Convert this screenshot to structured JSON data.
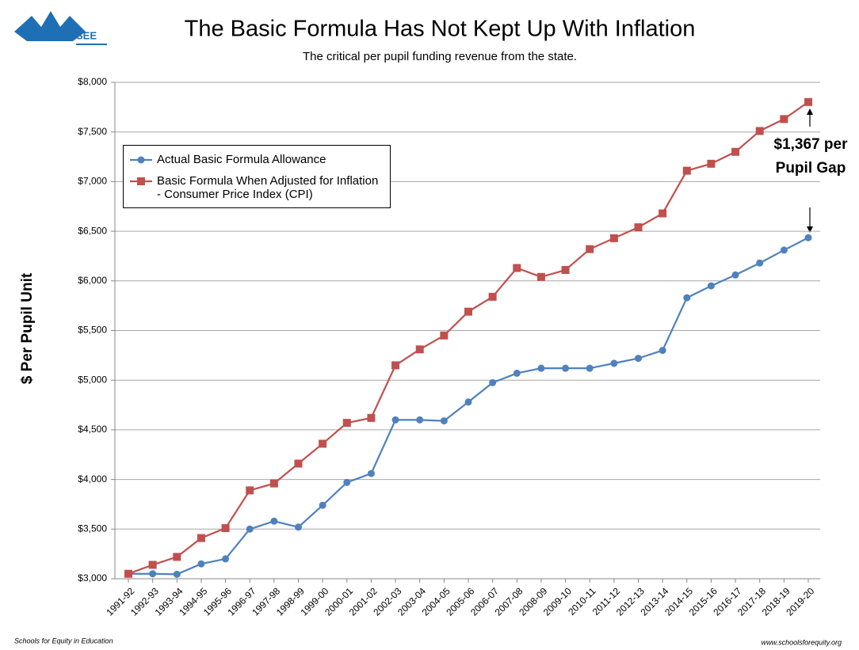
{
  "chart_data": {
    "type": "line",
    "logo_text": "SEE",
    "title": "The Basic Formula Has Not Kept Up With Inflation",
    "subtitle": "The critical per pupil funding revenue from the state.",
    "y_label": "$ Per Pupil Unit",
    "annotation": "$1,367 per Pupil Gap",
    "footer_left": "Schools for Equity in Education",
    "footer_right": "www.schoolsforequity.org",
    "categories": [
      "1991-92",
      "1992-93",
      "1993-94",
      "1994-95",
      "1995-96",
      "1996-97",
      "1997-98",
      "1998-99",
      "1999-00",
      "2000-01",
      "2001-02",
      "2002-03",
      "2003-04",
      "2004-05",
      "2005-06",
      "2006-07",
      "2007-08",
      "2008-09",
      "2009-10",
      "2010-11",
      "2011-12",
      "2012-13",
      "2013-14",
      "2014-15",
      "2015-16",
      "2016-17",
      "2017-18",
      "2018-19",
      "2019-20"
    ],
    "series": [
      {
        "name": "Actual Basic Formula Allowance",
        "color": "#4f81bd",
        "marker": "circle",
        "values": [
          3050,
          3050,
          3045,
          3150,
          3200,
          3500,
          3580,
          3520,
          3740,
          3970,
          4060,
          4600,
          4600,
          4590,
          4780,
          4975,
          5070,
          5120,
          5120,
          5120,
          5170,
          5220,
          5300,
          5830,
          5950,
          6060,
          6180,
          6310,
          6435
        ]
      },
      {
        "name": "Basic Formula When Adjusted for Inflation - Consumer Price Index (CPI)",
        "color": "#c0504d",
        "marker": "square",
        "values": [
          3050,
          3140,
          3220,
          3410,
          3510,
          3890,
          3960,
          4160,
          4360,
          4570,
          4620,
          5150,
          5310,
          5450,
          5690,
          5840,
          6130,
          6040,
          6110,
          6320,
          6430,
          6540,
          6680,
          7110,
          7180,
          7300,
          7510,
          7630,
          7802
        ]
      }
    ],
    "ylim": [
      3000,
      8000
    ],
    "yticks": [
      {
        "value": 3000,
        "label": "$3,000"
      },
      {
        "value": 3500,
        "label": "$3,500"
      },
      {
        "value": 4000,
        "label": "$4,000"
      },
      {
        "value": 4500,
        "label": "$4,500"
      },
      {
        "value": 5000,
        "label": "$5,000"
      },
      {
        "value": 5500,
        "label": "$5,500"
      },
      {
        "value": 6000,
        "label": "$6,000"
      },
      {
        "value": 6500,
        "label": "$6,500"
      },
      {
        "value": 7000,
        "label": "$7,000"
      },
      {
        "value": 7500,
        "label": "$7,500"
      },
      {
        "value": 8000,
        "label": "$8,000"
      }
    ],
    "grid": true
  }
}
